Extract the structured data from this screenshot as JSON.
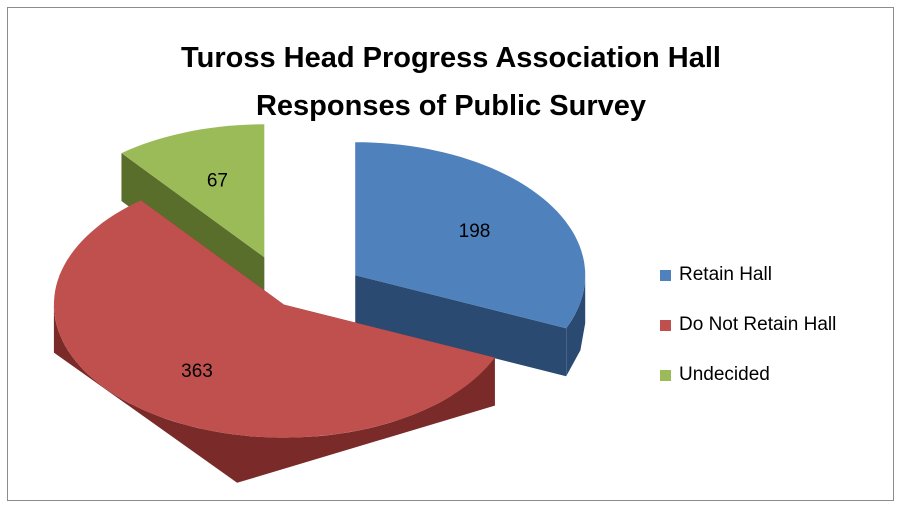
{
  "chart_data": {
    "type": "pie",
    "title": "Tuross Head Progress Association Hall Responses of Public Survey",
    "title_lines": [
      "Tuross Head Progress Association Hall",
      "Responses of Public Survey"
    ],
    "categories": [
      "Retain Hall",
      "Do Not Retain Hall",
      "Undecided"
    ],
    "values": [
      198,
      363,
      67
    ],
    "data_labels": [
      "198",
      "363",
      "67"
    ],
    "colors": [
      "#4f81bd",
      "#c0504d",
      "#9bbb59"
    ],
    "side_colors": [
      "#2a4a72",
      "#7a2b29",
      "#5a6e2c"
    ],
    "legend_position": "right",
    "style": "3d-exploded"
  }
}
